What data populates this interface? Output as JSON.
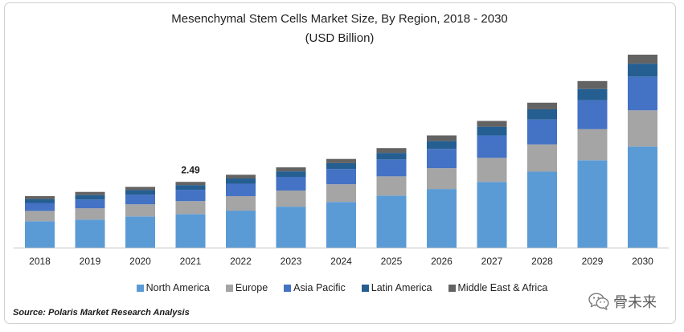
{
  "chart_data": {
    "type": "bar",
    "stacked": true,
    "title": "Mesenchymal Stem Cells Market Size, By Region, 2018 - 2030",
    "subtitle": "(USD Billion)",
    "categories": [
      "2018",
      "2019",
      "2020",
      "2021",
      "2022",
      "2023",
      "2024",
      "2025",
      "2026",
      "2027",
      "2028",
      "2029",
      "2030"
    ],
    "series": [
      {
        "name": "North America",
        "color": "#5b9bd5",
        "values": [
          1.0,
          1.06,
          1.18,
          1.27,
          1.4,
          1.55,
          1.73,
          1.97,
          2.22,
          2.49,
          2.88,
          3.31,
          3.83
        ]
      },
      {
        "name": "Europe",
        "color": "#a5a5a5",
        "values": [
          0.39,
          0.43,
          0.46,
          0.49,
          0.55,
          0.61,
          0.67,
          0.73,
          0.79,
          0.91,
          1.03,
          1.18,
          1.37
        ]
      },
      {
        "name": "Asia Pacific",
        "color": "#4472c4",
        "values": [
          0.3,
          0.33,
          0.36,
          0.43,
          0.47,
          0.52,
          0.58,
          0.64,
          0.73,
          0.85,
          0.94,
          1.09,
          1.28
        ]
      },
      {
        "name": "Latin America",
        "color": "#255e91",
        "values": [
          0.15,
          0.17,
          0.18,
          0.18,
          0.2,
          0.21,
          0.22,
          0.25,
          0.3,
          0.33,
          0.39,
          0.43,
          0.49
        ]
      },
      {
        "name": "Middle East & Africa",
        "color": "#636363",
        "values": [
          0.11,
          0.12,
          0.12,
          0.12,
          0.14,
          0.15,
          0.16,
          0.18,
          0.21,
          0.22,
          0.25,
          0.3,
          0.34
        ]
      }
    ],
    "annotations": [
      {
        "category": "2021",
        "text": "2.49"
      }
    ],
    "legend_position": "bottom",
    "grid": false,
    "y_axis_visible": false
  },
  "source": "Source: Polaris Market Research Analysis",
  "watermark": {
    "icon": "wechat-icon",
    "text": "骨未来"
  }
}
